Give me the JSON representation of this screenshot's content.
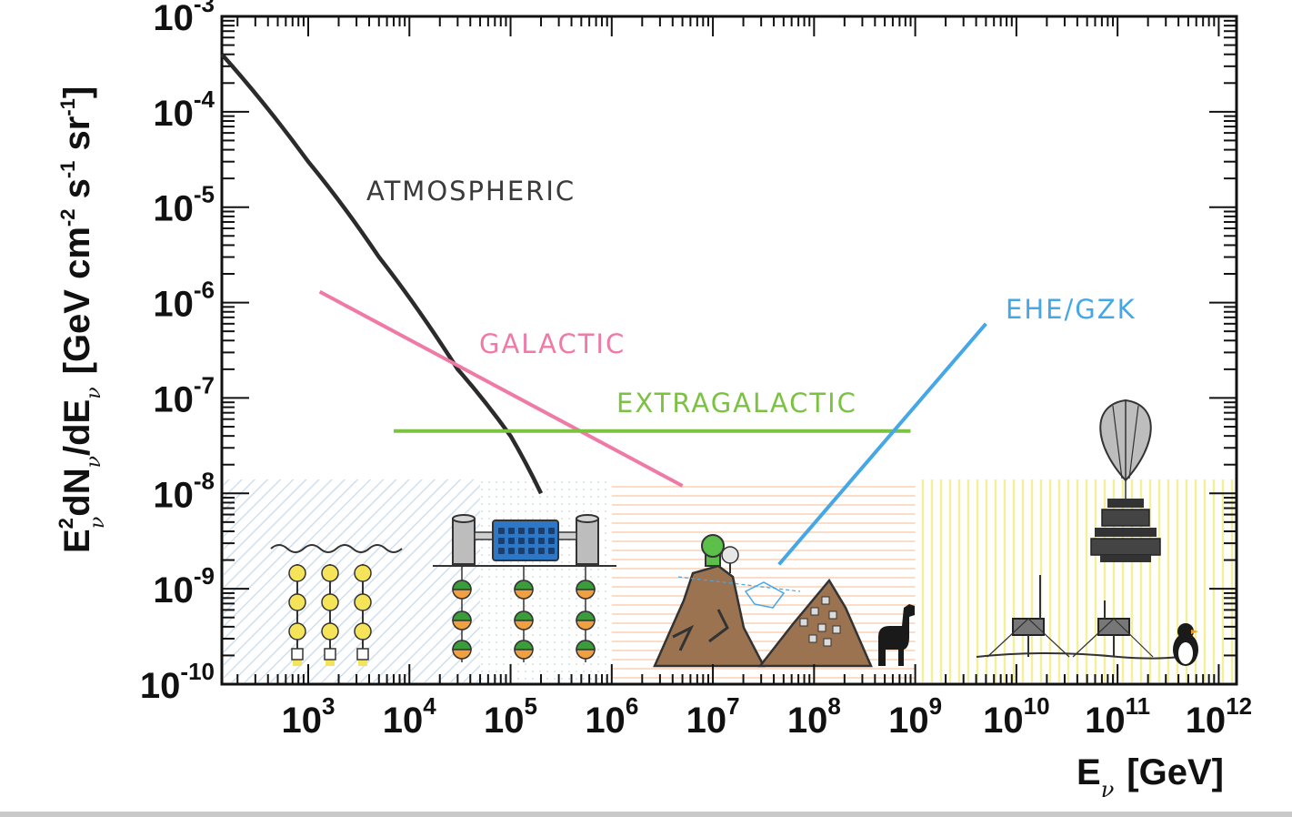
{
  "chart_data": {
    "type": "line",
    "xlabel_main": "E",
    "xlabel_sub": "ν",
    "xlabel_unit": "[GeV]",
    "ylabel_parts": {
      "e": "E",
      "two": "2",
      "nu1": "ν",
      "dn": "dN",
      "nu2": "ν",
      "slash_de": "/dE",
      "nu3": "ν",
      "gev": "[GeV cm",
      "minus2": "-2",
      "s": " s",
      "minus1a": "-1",
      "sr": " sr",
      "minus1b": "-1",
      "close": "]"
    },
    "x_scale": "log",
    "y_scale": "log",
    "xlim": [
      140,
      1500000000000.0
    ],
    "ylim": [
      1e-10,
      0.001
    ],
    "x_ticks": [
      {
        "base": "10",
        "exp": "3"
      },
      {
        "base": "10",
        "exp": "4"
      },
      {
        "base": "10",
        "exp": "5"
      },
      {
        "base": "10",
        "exp": "6"
      },
      {
        "base": "10",
        "exp": "7"
      },
      {
        "base": "10",
        "exp": "8"
      },
      {
        "base": "10",
        "exp": "9"
      },
      {
        "base": "10",
        "exp": "10"
      },
      {
        "base": "10",
        "exp": "11"
      },
      {
        "base": "10",
        "exp": "12"
      }
    ],
    "y_ticks": [
      {
        "base": "10",
        "exp": "-3"
      },
      {
        "base": "10",
        "exp": "-4"
      },
      {
        "base": "10",
        "exp": "-5"
      },
      {
        "base": "10",
        "exp": "-6"
      },
      {
        "base": "10",
        "exp": "-7"
      },
      {
        "base": "10",
        "exp": "-8"
      },
      {
        "base": "10",
        "exp": "-9"
      },
      {
        "base": "10",
        "exp": "-10"
      }
    ],
    "series": [
      {
        "name": "ATMOSPHERIC",
        "color": "#2b2b2b",
        "x": [
          140,
          1000,
          5000,
          30000,
          100000,
          200000
        ],
        "y": [
          0.0004,
          3e-05,
          3e-06,
          2e-07,
          4e-08,
          1e-08
        ]
      },
      {
        "name": "GALACTIC",
        "color": "#f07aa6",
        "x": [
          1300,
          5000000
        ],
        "y": [
          1.3e-06,
          1.2e-08
        ]
      },
      {
        "name": "EXTRAGALACTIC",
        "color": "#7cc242",
        "x": [
          7000,
          900000000
        ],
        "y": [
          4.5e-08,
          4.5e-08
        ]
      },
      {
        "name": "EHE/GZK",
        "color": "#45a7e6",
        "x": [
          45000000,
          5000000000
        ],
        "y": [
          1.8e-09,
          6e-07
        ]
      }
    ],
    "regions": [
      {
        "name": "water-ice-detectors",
        "x": [
          140,
          50000
        ],
        "color": "#d6e6f2"
      },
      {
        "name": "icecube",
        "x": [
          50000,
          1000000
        ],
        "color": "#dde6ee"
      },
      {
        "name": "mountain-radio",
        "x": [
          1000000,
          1000000000
        ],
        "color": "#f8d8c0"
      },
      {
        "name": "balloon-radio",
        "x": [
          1000000000,
          1500000000000.0
        ],
        "color": "#f4f0a0"
      }
    ],
    "grid": false,
    "legend": "none"
  }
}
